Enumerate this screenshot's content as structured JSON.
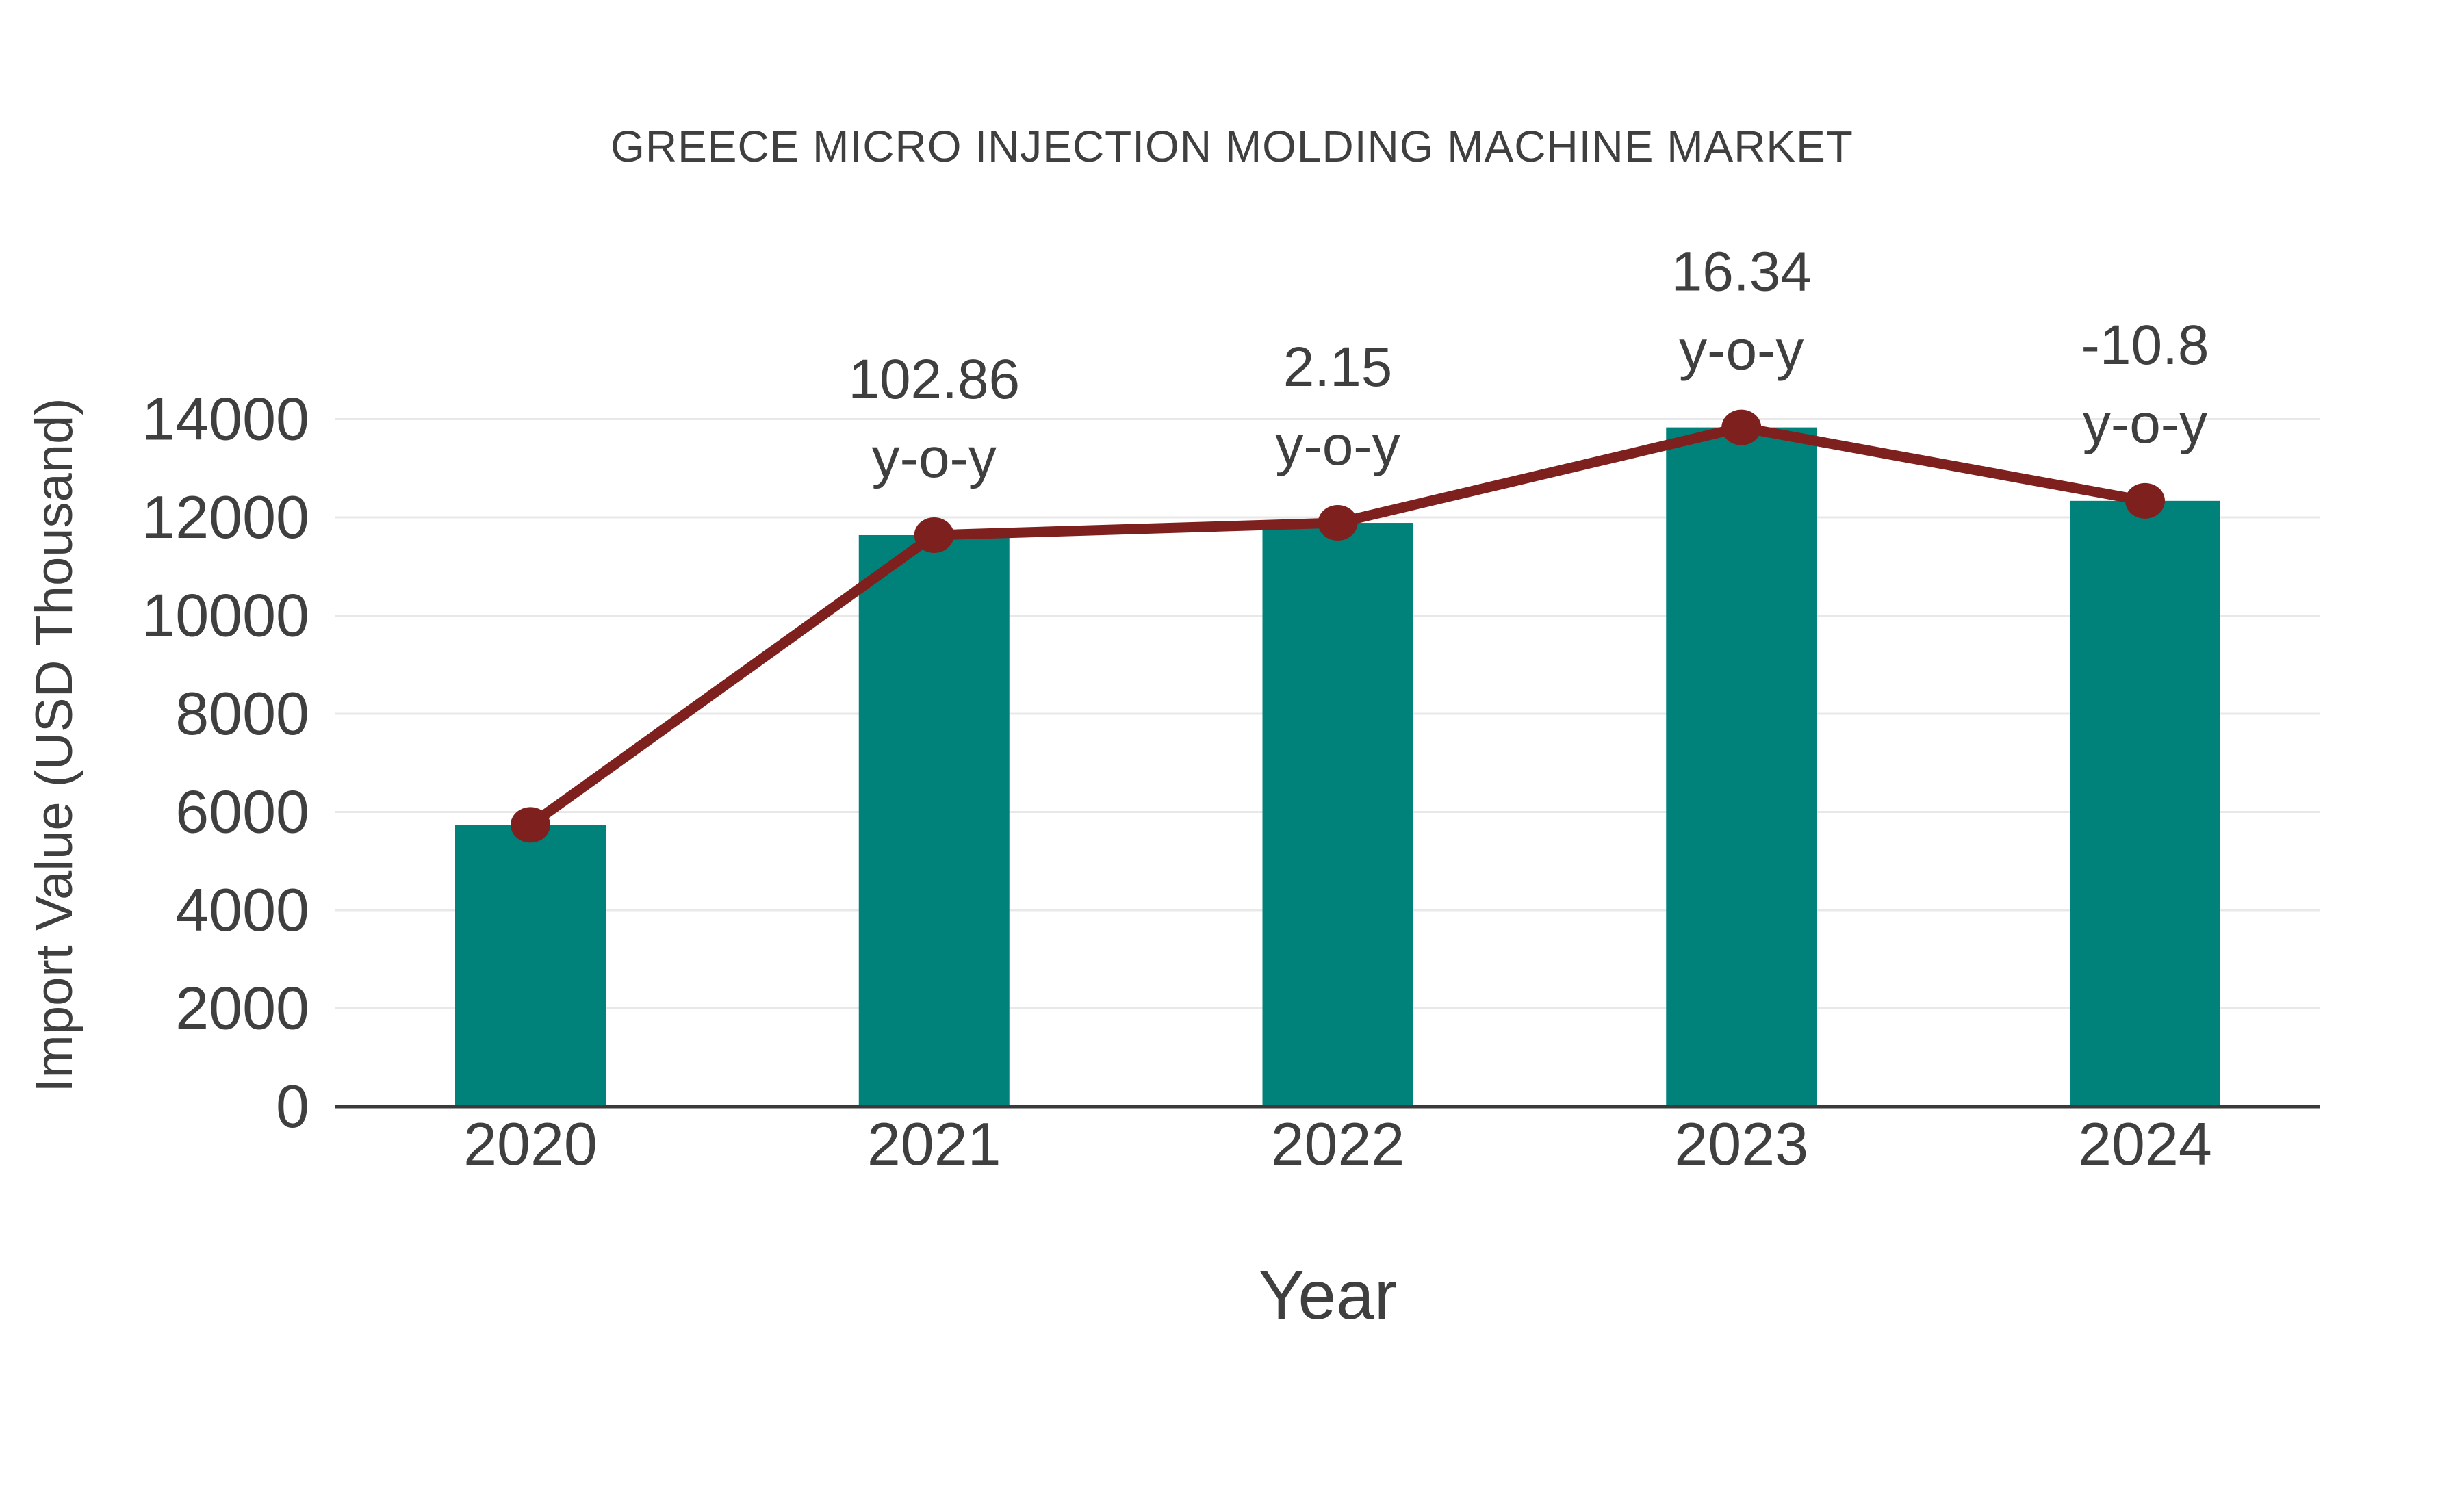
{
  "chart_data": {
    "type": "bar",
    "title": "GREECE MICRO INJECTION MOLDING MACHINE MARKET",
    "xlabel": "Year",
    "ylabel": "Import Value (USD Thousand)",
    "categories": [
      "2020",
      "2021",
      "2022",
      "2023",
      "2024"
    ],
    "series": [
      {
        "name": "Import Value bars",
        "type": "bar",
        "color": "#00827b",
        "values": [
          5737,
          11638,
          11888,
          13831,
          12337
        ]
      },
      {
        "name": "Import Value trend line",
        "type": "line",
        "color": "#7e211e",
        "values": [
          5737,
          11638,
          11888,
          13831,
          12337
        ]
      }
    ],
    "yoy_percent": [
      null,
      102.86,
      2.15,
      16.34,
      -10.8
    ],
    "annotations": [
      {
        "category": "2021",
        "lines": [
          "102.86",
          "y-o-y"
        ]
      },
      {
        "category": "2022",
        "lines": [
          "2.15",
          "y-o-y"
        ]
      },
      {
        "category": "2023",
        "lines": [
          "16.34",
          "y-o-y"
        ]
      },
      {
        "category": "2024",
        "lines": [
          "-10.8",
          "y-o-y"
        ]
      }
    ],
    "yticks": [
      0,
      2000,
      4000,
      6000,
      8000,
      10000,
      12000,
      14000
    ],
    "ylim": [
      0,
      14000
    ],
    "grid": "horizontal",
    "legend": "none",
    "colors": {
      "bar": "#00827b",
      "line": "#7e211e",
      "text": "#3f3f3f",
      "grid": "#e8e8e8",
      "axis": "#3a3a3a",
      "background": "#ffffff"
    }
  }
}
